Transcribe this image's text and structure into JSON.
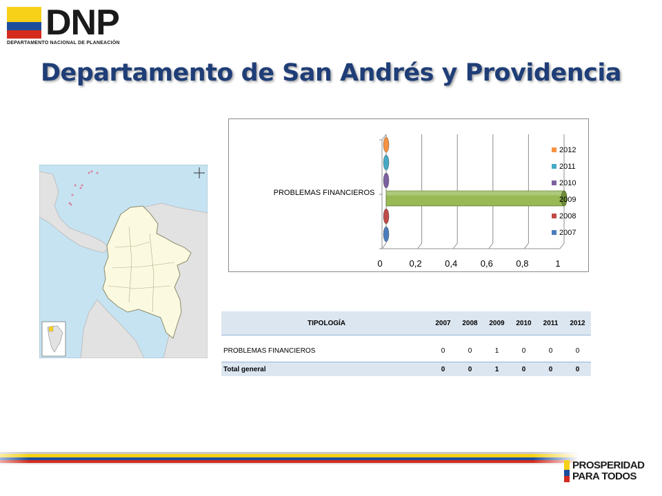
{
  "header": {
    "logo_text": "DNP",
    "logo_subtitle": "DEPARTAMENTO NACIONAL DE PLANEACIÓN",
    "title": "Departamento de San Andrés y Providencia"
  },
  "colors": {
    "title": "#1f3e77",
    "flag_yellow": "#f7d117",
    "flag_blue": "#1d4e9e",
    "flag_red": "#d52b1e",
    "sea": "#c6e3f2",
    "land": "#fbf9e0",
    "neighbor_land": "#e2e2e2"
  },
  "map": {
    "icon": "colombia-map-icon"
  },
  "chart_data": {
    "type": "bar",
    "orientation": "horizontal",
    "style": "3d-cylinder",
    "categories": [
      "PROBLEMAS FINANCIEROS"
    ],
    "series": [
      {
        "name": "2007",
        "values": [
          0
        ],
        "color": "#4a7ebb"
      },
      {
        "name": "2008",
        "values": [
          0
        ],
        "color": "#be4b48"
      },
      {
        "name": "2009",
        "values": [
          1
        ],
        "color": "#98b954"
      },
      {
        "name": "2010",
        "values": [
          0
        ],
        "color": "#7d60a0"
      },
      {
        "name": "2011",
        "values": [
          0
        ],
        "color": "#46aac5"
      },
      {
        "name": "2012",
        "values": [
          0
        ],
        "color": "#f69240"
      }
    ],
    "legend_order": [
      "2012",
      "2011",
      "2010",
      "2009",
      "2008",
      "2007"
    ],
    "xticks": [
      "0",
      "0,2",
      "0,4",
      "0,6",
      "0,8",
      "1"
    ],
    "xlim": [
      0,
      1
    ],
    "grid": true,
    "legend_position": "right"
  },
  "table": {
    "header": [
      "TIPOLOGÍA",
      "2007",
      "2008",
      "2009",
      "2010",
      "2011",
      "2012"
    ],
    "rows": [
      {
        "label": "PROBLEMAS FINANCIEROS",
        "values": [
          "0",
          "0",
          "1",
          "0",
          "0",
          "0"
        ]
      }
    ],
    "total": {
      "label": "Total general",
      "values": [
        "0",
        "0",
        "1",
        "0",
        "0",
        "0"
      ]
    }
  },
  "footer": {
    "line1": "PROSPERIDAD",
    "line2": "PARA TODOS"
  }
}
